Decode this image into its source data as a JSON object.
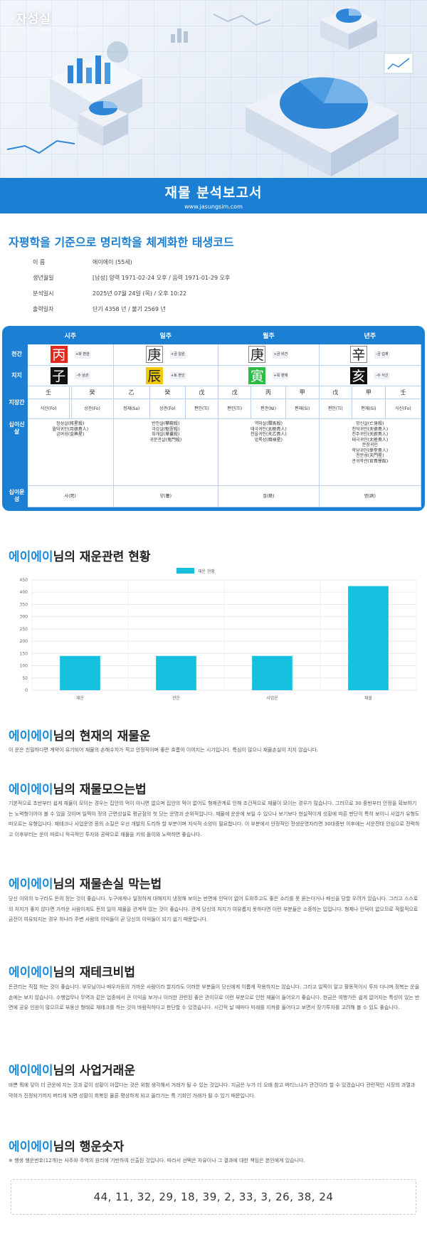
{
  "header": {
    "logo_main": "자성실",
    "logo_sub": "자평명리 · 사주 재물 연구소",
    "banner_title": "재물 분석보고서",
    "banner_url": "www.jasungsim.com"
  },
  "main_title": "자평학을 기준으로 명리학을 체계화한 태생코드",
  "profile": {
    "name_label": "이 름",
    "name_value": "에이에이 (55세)",
    "birth_label": "생년월일",
    "birth_value": "[남성] 양력 1971-02-24 오후 / 음력 1971-01-29 오후",
    "analysis_label": "분석일시",
    "analysis_value": "2025년 07월 24일 (목) / 오후 10:22",
    "period_label": "출력일자",
    "period_value": "단기 4358 년 / 불기 2569 년"
  },
  "saju": {
    "labels": {
      "cheongan": "천간",
      "jiji": "지지",
      "jijanggan": "지장간",
      "sinsal": "십이신살",
      "unseong": "십이운성"
    },
    "pillars": [
      {
        "title": "시주",
        "gan": "丙",
        "gan_color": "red",
        "gan_tag": "+화 편관",
        "ji": "子",
        "ji_color": "black",
        "ji_tag": "-수 상관",
        "jijang": [
          "壬",
          "",
          "癸"
        ],
        "sipsin": [
          "식신(Fo)",
          "",
          "상관(Fo)"
        ],
        "sinsal": "장성살(將星殺)\n월덕귀인(月德貴人)\n금여성(金輿星)",
        "unseong": "사(死)"
      },
      {
        "title": "일주",
        "gan": "庚",
        "gan_color": "white",
        "gan_tag": "+금 일원",
        "ji": "辰",
        "ji_color": "yellow",
        "ji_tag": "+토 편인",
        "jijang": [
          "乙",
          "癸",
          "戊"
        ],
        "sipsin": [
          "정재(Sa)",
          "상관(Fo)",
          "편인(Ti)"
        ],
        "sinsal": "반안살(攀鞍殺)\n괴강살(魁罡殺)\n화개살(華蓋殺)\n귀문관살(鬼門殺)",
        "unseong": "양(養)"
      },
      {
        "title": "월주",
        "gan": "庚",
        "gan_color": "white",
        "gan_tag": "+금 비견",
        "ji": "寅",
        "ji_color": "green",
        "ji_tag": "+목 편재",
        "jijang": [
          "戊",
          "丙",
          "甲"
        ],
        "sipsin": [
          "편인(Ti)",
          "편관(Ni)",
          "편재(Si)"
        ],
        "sinsal": "역마살(驛馬殺)\n태극귀인(太極貴人)\n천을귀인(天乙貴人)\n암록성(暗祿星)",
        "unseong": "절(絶)"
      },
      {
        "title": "년주",
        "gan": "辛",
        "gan_color": "white",
        "gan_tag": "-금 겁재",
        "ji": "亥",
        "ji_color": "black",
        "ji_tag": "-수 식신",
        "jijang": [
          "戊",
          "甲",
          "壬"
        ],
        "sipsin": [
          "편인(Ti)",
          "편재(Si)",
          "식신(Fo)"
        ],
        "sinsal": "망신살(亡身殺)\n천덕귀인(天德貴人)\n천주귀인(天廚貴人)\n태극귀인(太極貴人)\n문창귀인\n학당귀인(學堂貴人)\n천문성(天門星)\n관귀학관(官貴學館)",
        "unseong": "병(病)"
      }
    ]
  },
  "section_fortune": {
    "name": "에이에이",
    "suffix": "님의 재운관련 현황"
  },
  "chart_data": {
    "type": "bar",
    "categories": [
      "재운",
      "관운",
      "사업운",
      "재물"
    ],
    "series": [
      {
        "name": "재운 현황",
        "values": [
          140,
          140,
          140,
          425
        ]
      }
    ],
    "ylim": [
      0,
      450
    ],
    "yticks": [
      0,
      50,
      100,
      150,
      200,
      250,
      300,
      350,
      400,
      450
    ],
    "legend": "top-center",
    "grid": true,
    "color": "#16c1e0"
  },
  "sections": [
    {
      "name": "에이에이",
      "suffix": "님의 현재의 재물운",
      "body": "이 운은 친밀하다면 계약이 유기되어 재물의 손해수치가 적고 안정적이며 좋은 흐름이 이어지는 시기입니다. 특심이 많으니 재물손실이 지지 않습니다."
    },
    {
      "name": "에이에이",
      "suffix": "님의 재물모으는법",
      "body": "기본적으로 초반부터 쉽게 재물이 모이는 경우는 집안의 먹이 아니면 없으며 집안의 먹이 없어도 형제관계로 인해 조건적으로 재물이 모이는 경우가 많습니다. 그러므로 30 중반부터 안정을 확보하기는 노력형이어야 볼 수 있을 것이며 일찍이 정의 근면성실로 평균점의 첫 당는 운명과 순위적입니다. 재물에 운운에 보일 수 있으나 보기보다 현실적이게 성황에 따른 판단이 특히 보이니 사업가 유형도 떠오르는 유형입니다. 재테크나 사업운영 등의 소질은 우선 개발의 도리하 할 부분이며 지식적 소양이 필요합니다. 이 부분에서 안정적인 전생운영자라면 30대중반 이후에는 서운전대 안심으로 전력하고 이후부터는 운이 따르니 적극적인 투자와 공략으로 재물을 키워 돌이와 노력하면 좋습니다."
    },
    {
      "name": "에이에이",
      "suffix": "님의 재물손실 막는법",
      "body": "당신 이외의 누구라도 돈의 정는 것이 좋습니다. 누구에게나 일정하게 대해지지 냉정해 보이는 반면에 인덕이 없어 도와주고도 좋은 소리를 못 듣는다거나 배신을 당할 우려가 있습니다. 그리고 스스로의 처지가 좋지 않다면 가까운 사람이게도 돈의 일이 재물을 관계적 않는 것이 좋습니다. 관계 당신의 처지가 여유롭지 못하다면 이런 부분들은 소중하는 입입니다. 형제나 인덕이 없으므로 적절적으로 금전이 여유되지는 경우 하나라 주변 사람의 이익들이 곧 당신의 이익들이 되기 쉽기 때문입니다."
    },
    {
      "name": "에이에이",
      "suffix": "님의 재테크비법",
      "body": "돈관리는 직접 하는 것이 좋습니다. 부모님이나 배우자등의 가까운 사람이라 할지라도 이러한 부분들이 당신에게 이롭게 작용하지는 않습니다. 그리고 일찍이 알고 활동적이시 투자 다니며 정복는 운을 손에는 보지 않습니다. 수행업무나 무역과 같은 업종에서 큰 이익을 보거나 이러한 관련된 좋은 관이므로 이런 부분으로 인한 재물이 들어오기 좋습니다. 현금은 여행가든 쉽게 없어지는 특성이 있는 반면에 공유 인원이 많으므로 부동산 형태로 재테크를 하는 것이 바람직하다고 판단할 수 있겠습니다. 시간적 날 때마다 미래를 지켜를 들어다고 보면서 장기투자를 고려해 볼 수 있도 좋습니다."
    },
    {
      "name": "에이에이",
      "suffix": "님의 사업거래운",
      "body": "바쁜 뭐에 닿이 더 큰운에 지는 것과 같이 성황이 아깝다는 것은 위험 생각해서 거래가 될 수 있는 것입니다. 지금은 누가 더 오래 참고 버티느냐가 관건이라 할 수 있겠습니다 관련적인 시장의 과열과 막혀가 진정되기까지 버티게 되면 성황이 회복된 물론 평상하게 되고 올리가는 특 기회인 거래가 될 수 있기 때문입니다."
    },
    {
      "name": "에이에이",
      "suffix": "님의 행운숫자",
      "body": "※ 행생 행운번호(12개)는 사주와 주역의 원리에 기반하여 산출된 것입니다. 따라서 선택은 자유이나 그 결과에 대한 책임은 본인에게 있습니다."
    }
  ],
  "lucky_numbers": "44, 11, 32, 29, 18, 39, 2, 33, 3, 26, 38, 24"
}
